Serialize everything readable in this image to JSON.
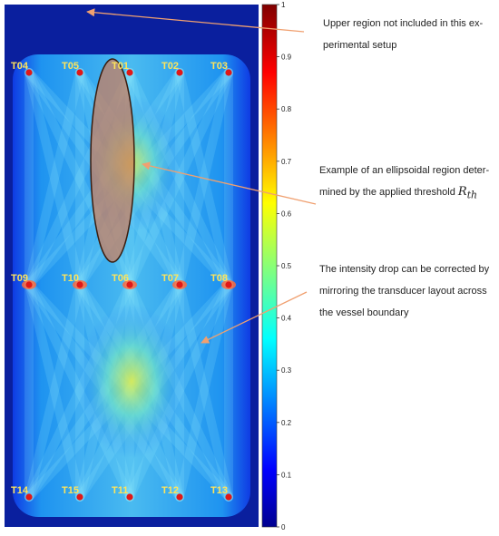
{
  "figure": {
    "transducers": [
      {
        "id": "T04",
        "row": 0,
        "col": 0
      },
      {
        "id": "T05",
        "row": 0,
        "col": 1
      },
      {
        "id": "T01",
        "row": 0,
        "col": 2
      },
      {
        "id": "T02",
        "row": 0,
        "col": 3
      },
      {
        "id": "T03",
        "row": 0,
        "col": 4
      },
      {
        "id": "T09",
        "row": 1,
        "col": 0
      },
      {
        "id": "T10",
        "row": 1,
        "col": 1
      },
      {
        "id": "T06",
        "row": 1,
        "col": 2
      },
      {
        "id": "T07",
        "row": 1,
        "col": 3
      },
      {
        "id": "T08",
        "row": 1,
        "col": 4
      },
      {
        "id": "T14",
        "row": 2,
        "col": 0
      },
      {
        "id": "T15",
        "row": 2,
        "col": 1
      },
      {
        "id": "T11",
        "row": 2,
        "col": 2
      },
      {
        "id": "T12",
        "row": 2,
        "col": 3
      },
      {
        "id": "T13",
        "row": 2,
        "col": 4
      }
    ],
    "colorbar": {
      "min": 0,
      "max": 1,
      "ticks": [
        "0",
        "0.1",
        "0.2",
        "0.3",
        "0.4",
        "0.5",
        "0.6",
        "0.7",
        "0.8",
        "0.9",
        "1"
      ]
    },
    "annotations": {
      "upper_region": [
        "Upper region not included in this ex-",
        "perimental setup"
      ],
      "ellipsoid": [
        "Example of an ellipsoidal region deter-",
        "mined by the applied threshold"
      ],
      "threshold_symbol": "R",
      "threshold_subscript": "th",
      "intensity_drop": [
        "The intensity drop can be corrected by",
        "mirroring the transducer layout across",
        "the vessel boundary"
      ]
    },
    "colors": {
      "background_field": "#0a1f9e",
      "arrow": "#f0a070",
      "ellipse_fill": "#d27a55",
      "transducer_dot": "#e01818",
      "label": "#ffe45a"
    }
  }
}
